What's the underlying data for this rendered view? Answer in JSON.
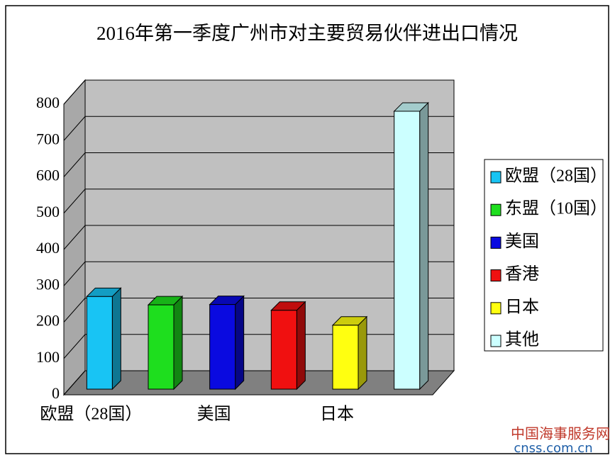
{
  "chart_data": {
    "type": "bar3d",
    "title": "2016年第一季度广州市对主要贸易伙伴进出口情况",
    "categories": [
      "欧盟（28国）",
      null,
      "美国",
      null,
      "日本",
      null
    ],
    "legend": [
      "欧盟（28国）",
      "东盟（10国）",
      "美国",
      "香港",
      "日本",
      "其他"
    ],
    "values": [
      255,
      232,
      233,
      217,
      176,
      765
    ],
    "colors": [
      "#18c4f4",
      "#1ede1e",
      "#0a0ae0",
      "#f01010",
      "#ffff10",
      "#ccffff"
    ],
    "ylim": [
      0,
      800
    ],
    "yticks": [
      0,
      100,
      200,
      300,
      400,
      500,
      600,
      700,
      800
    ],
    "grid": true
  },
  "watermark": {
    "name": "中国海事服务网",
    "url": "cnss.com.cn"
  }
}
